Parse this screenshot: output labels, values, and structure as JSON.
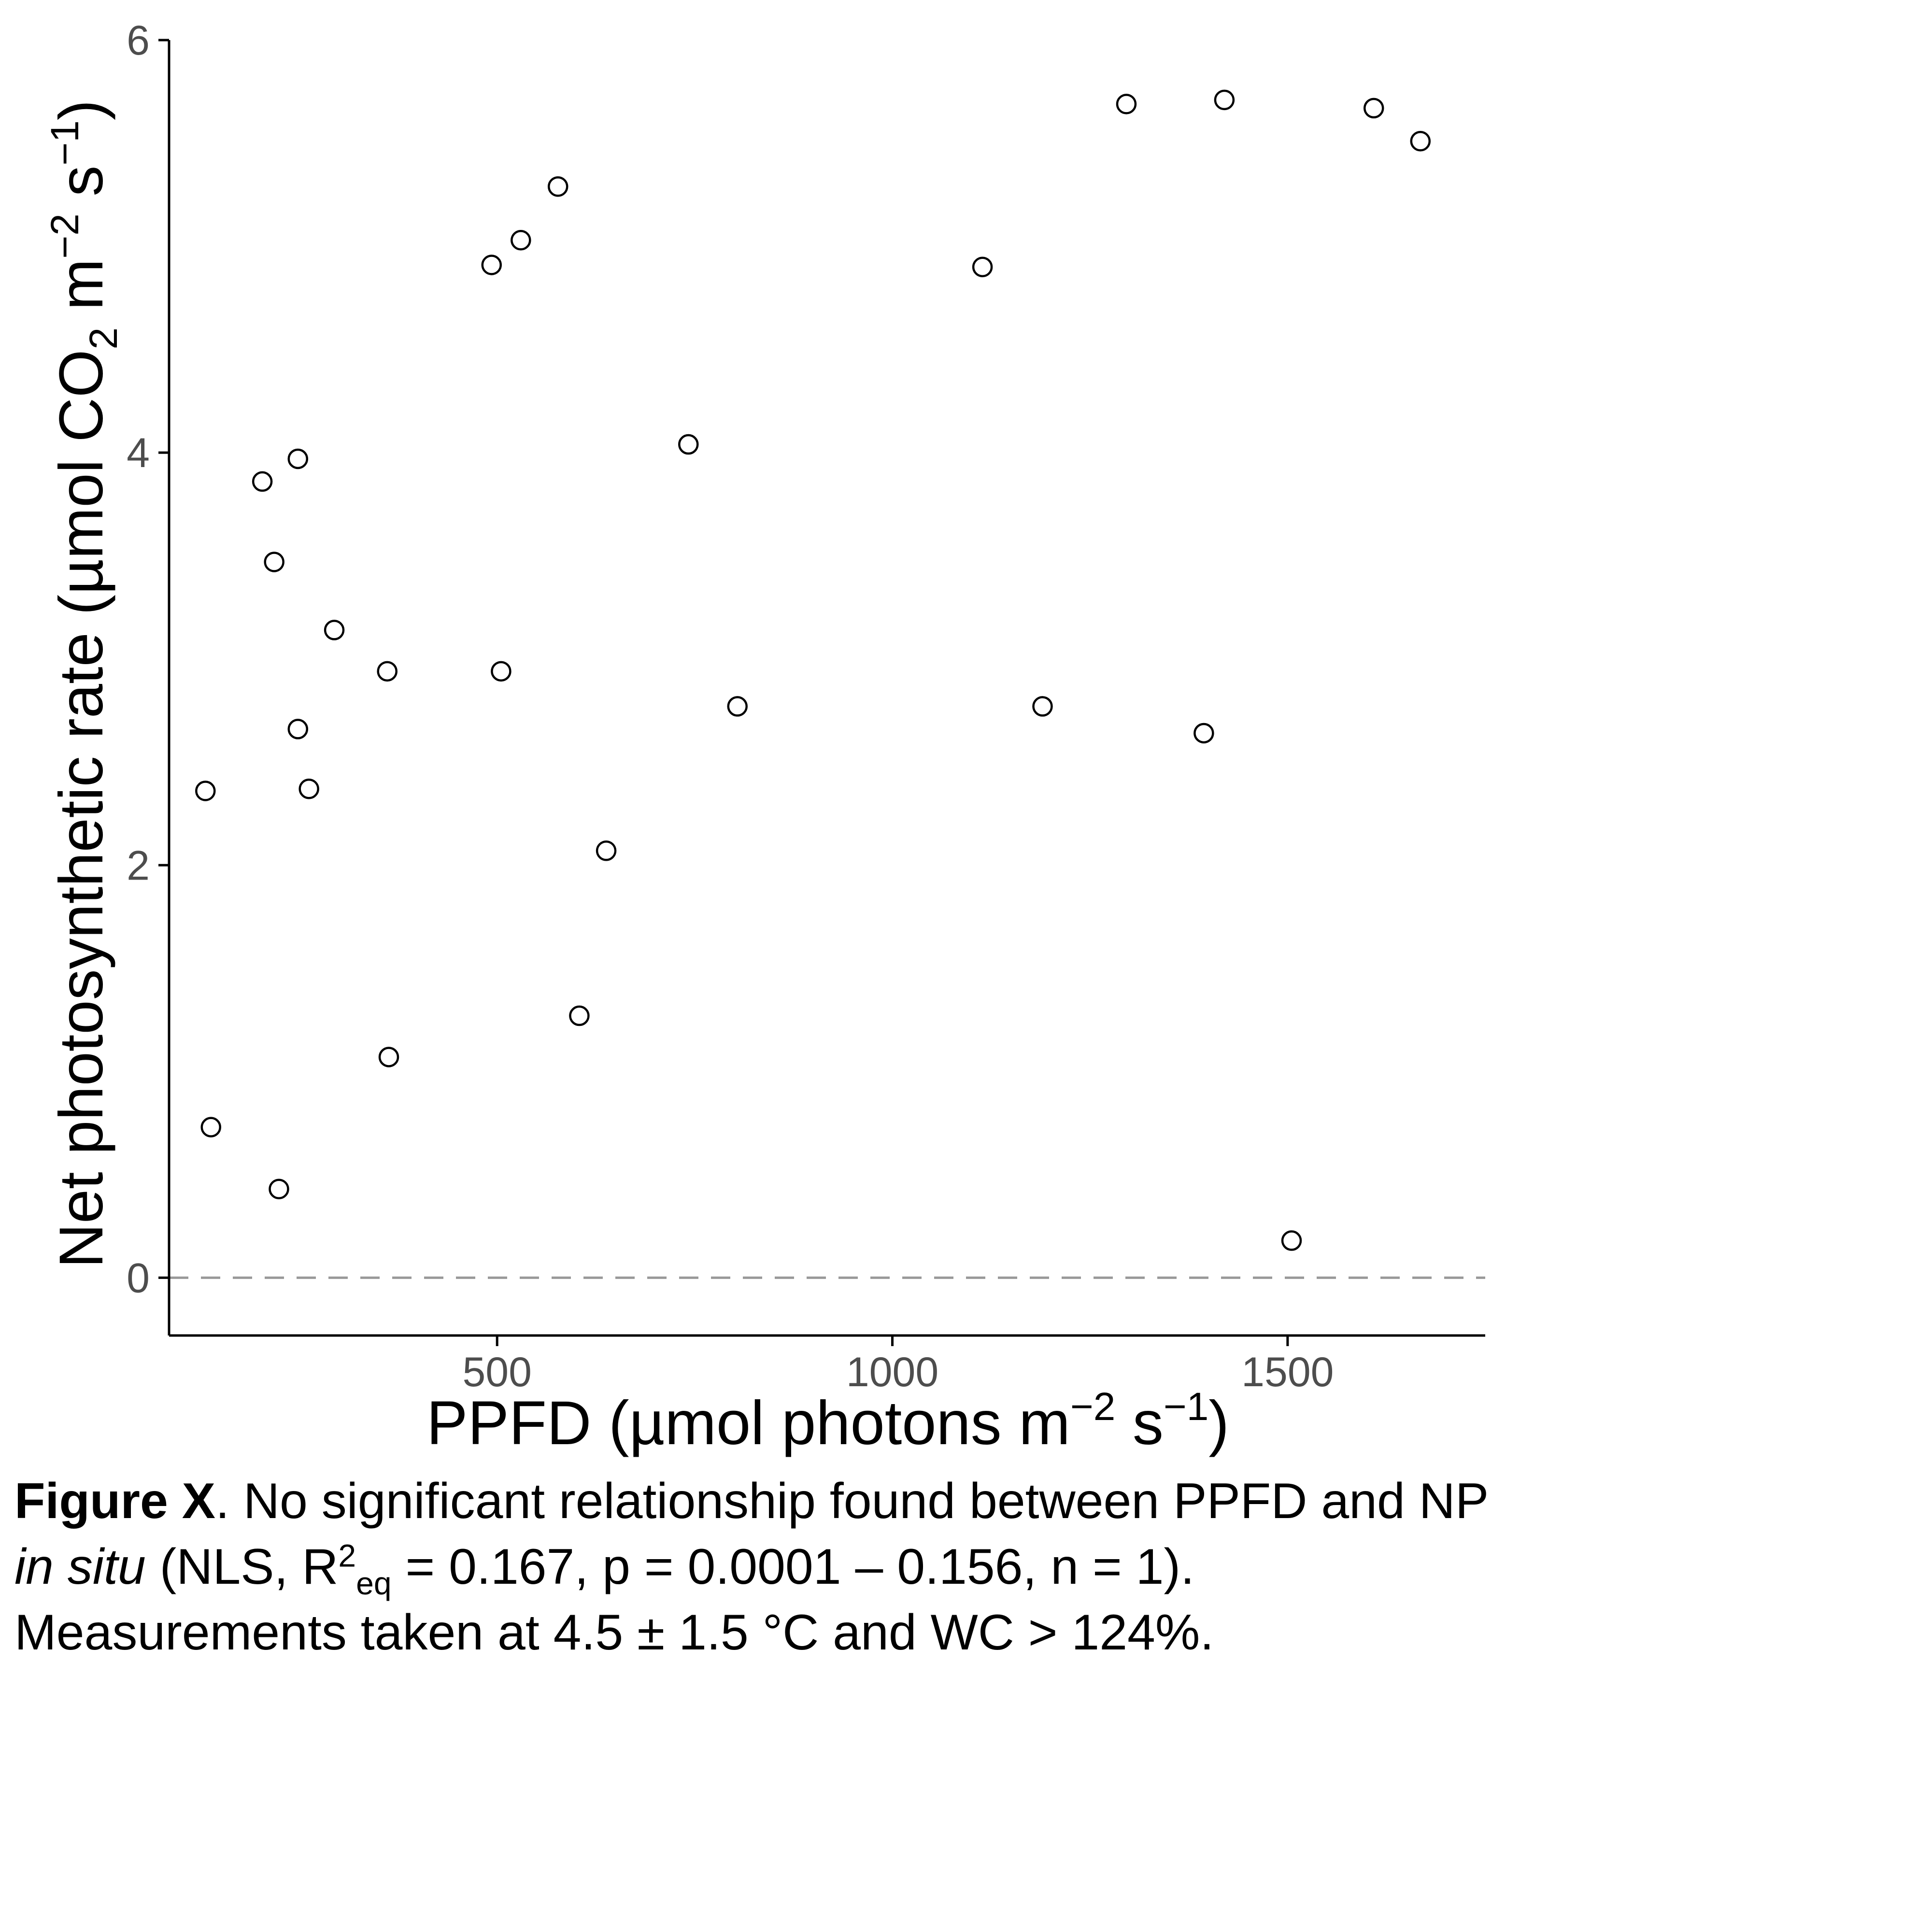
{
  "chart_data": {
    "type": "scatter",
    "xlabel": {
      "main": "PPFD (µmol photons m",
      "sup1": "−2",
      "mid": " s",
      "sup2": "−1",
      "end": ")"
    },
    "ylabel": {
      "main": "Net photosynthetic rate (µmol CO",
      "sub": "2",
      "mid1": " m",
      "sup1": "−2",
      "mid2": " s",
      "sup2": "−1",
      "end": ")"
    },
    "xlim": [
      85,
      1750
    ],
    "ylim": [
      -0.28,
      6.0
    ],
    "x_ticks": [
      500,
      1000,
      1500
    ],
    "x_tick_labels": [
      "500",
      "1000",
      "1500"
    ],
    "y_ticks": [
      0,
      2,
      4,
      6
    ],
    "y_tick_labels": [
      "0",
      "2",
      "4",
      "6"
    ],
    "reference_line": {
      "y": 0,
      "style": "dashed",
      "color": "#999999"
    },
    "grid": false,
    "marker": {
      "shape": "open-circle",
      "color": "#000000"
    },
    "points": [
      {
        "x": 493,
        "y": 4.91
      },
      {
        "x": 530,
        "y": 5.03
      },
      {
        "x": 577,
        "y": 5.29
      },
      {
        "x": 1114,
        "y": 4.9
      },
      {
        "x": 1296,
        "y": 5.69
      },
      {
        "x": 1420,
        "y": 5.71
      },
      {
        "x": 1609,
        "y": 5.67
      },
      {
        "x": 1668,
        "y": 5.51
      },
      {
        "x": 203,
        "y": 3.86
      },
      {
        "x": 248,
        "y": 3.97
      },
      {
        "x": 742,
        "y": 4.04
      },
      {
        "x": 218,
        "y": 3.47
      },
      {
        "x": 294,
        "y": 3.14
      },
      {
        "x": 361,
        "y": 2.94
      },
      {
        "x": 505,
        "y": 2.94
      },
      {
        "x": 804,
        "y": 2.77
      },
      {
        "x": 1190,
        "y": 2.77
      },
      {
        "x": 1394,
        "y": 2.64
      },
      {
        "x": 248,
        "y": 2.66
      },
      {
        "x": 131,
        "y": 2.36
      },
      {
        "x": 262,
        "y": 2.37
      },
      {
        "x": 638,
        "y": 2.07
      },
      {
        "x": 604,
        "y": 1.27
      },
      {
        "x": 363,
        "y": 1.07
      },
      {
        "x": 138,
        "y": 0.73
      },
      {
        "x": 224,
        "y": 0.43
      },
      {
        "x": 1505,
        "y": 0.18
      }
    ]
  },
  "caption": {
    "bold_label": "Figure X",
    "line1_rest": ". No significant relationship found between PPFD and NP",
    "line2_italic": "in situ",
    "line2_a": " (NLS, R",
    "line2_sup": "2",
    "line2_sub": "eq",
    "line2_b": " = 0.167, p = 0.0001 – 0.156, n = 1).",
    "line3": "Measurements taken at 4.5 ± 1.5 °C  and WC > 124%."
  }
}
